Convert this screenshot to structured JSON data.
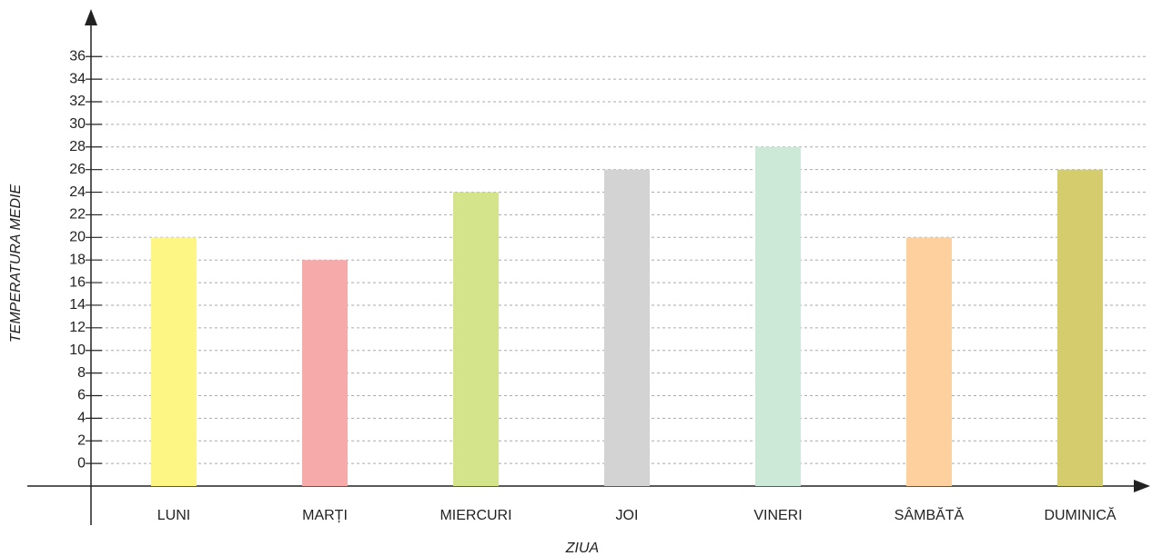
{
  "chart_data": {
    "type": "bar",
    "xlabel": "ZIUA",
    "ylabel": "TEMPERATURA MEDIE",
    "categories": [
      "LUNI",
      "MARȚI",
      "MIERCURI",
      "JOI",
      "VINERI",
      "SÂMBĂTĂ",
      "DUMINICĂ"
    ],
    "values": [
      20,
      18,
      24,
      26,
      28,
      20,
      26
    ],
    "colors": [
      "#fdf685",
      "#f7aaaa",
      "#d4e48a",
      "#d3d3d3",
      "#cce8d6",
      "#fdd09e",
      "#d5cc6e"
    ],
    "ylim": [
      -2,
      40
    ],
    "yticks": [
      0,
      2,
      4,
      6,
      8,
      10,
      12,
      14,
      16,
      18,
      20,
      22,
      24,
      26,
      28,
      30,
      32,
      34,
      36
    ],
    "grid": true
  }
}
